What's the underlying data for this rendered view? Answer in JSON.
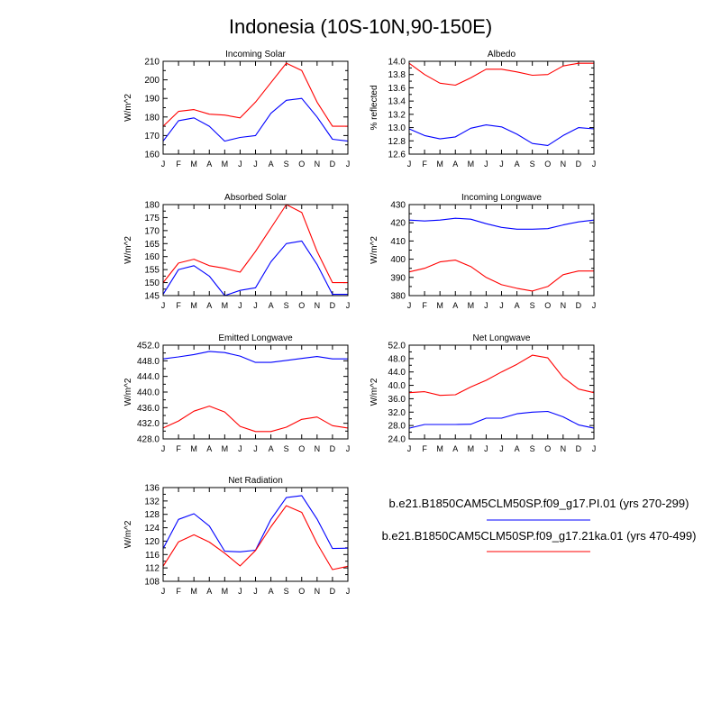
{
  "figure": {
    "title": "Indonesia (10S-10N,90-150E)",
    "months": [
      "J",
      "F",
      "M",
      "A",
      "M",
      "J",
      "J",
      "A",
      "S",
      "O",
      "N",
      "D",
      "J"
    ],
    "series_colors": {
      "pi": "#0000ff",
      "ka21": "#ff0000"
    },
    "legend": [
      {
        "label": "b.e21.B1850CAM5CLM50SP.f09_g17.PI.01 (yrs 270-299)",
        "color": "#0000ff"
      },
      {
        "label": "b.e21.B1850CAM5CLM50SP.f09_g17.21ka.01 (yrs 470-499)",
        "color": "#ff0000"
      }
    ]
  },
  "chart_data": [
    {
      "type": "line",
      "title": "Incoming Solar",
      "ylabel": "W/m^2",
      "x": [
        "J",
        "F",
        "M",
        "A",
        "M",
        "J",
        "J",
        "A",
        "S",
        "O",
        "N",
        "D",
        "J"
      ],
      "ylim": [
        160,
        210
      ],
      "yticks": [
        160,
        170,
        180,
        190,
        200,
        210
      ],
      "ytick_labels": [
        "160",
        "170",
        "180",
        "190",
        "200",
        "210"
      ],
      "series": [
        {
          "name": "b.e21.B1850CAM5CLM50SP.f09_g17.PI.01 (yrs 270-299)",
          "color": "#0000ff",
          "values": [
            167,
            178,
            179.5,
            175,
            167,
            169,
            170,
            182,
            189,
            190,
            180,
            168,
            167
          ]
        },
        {
          "name": "b.e21.B1850CAM5CLM50SP.f09_g17.21ka.01 (yrs 470-499)",
          "color": "#ff0000",
          "values": [
            175,
            183,
            184,
            181.5,
            181,
            179.5,
            188,
            198.5,
            209,
            205,
            188,
            175,
            175
          ]
        }
      ]
    },
    {
      "type": "line",
      "title": "Albedo",
      "ylabel": "% reflected",
      "x": [
        "J",
        "F",
        "M",
        "A",
        "M",
        "J",
        "J",
        "A",
        "S",
        "O",
        "N",
        "D",
        "J"
      ],
      "ylim": [
        12.6,
        14.0
      ],
      "yticks": [
        12.6,
        12.8,
        13.0,
        13.2,
        13.4,
        13.6,
        13.8,
        14.0
      ],
      "ytick_labels": [
        "12.6",
        "12.8",
        "13.0",
        "13.2",
        "13.4",
        "13.6",
        "13.8",
        "14.0"
      ],
      "series": [
        {
          "name": "b.e21.B1850CAM5CLM50SP.f09_g17.PI.01 (yrs 270-299)",
          "color": "#0000ff",
          "values": [
            12.98,
            12.88,
            12.83,
            12.86,
            12.99,
            13.04,
            13.01,
            12.9,
            12.76,
            12.73,
            12.88,
            13.0,
            12.98
          ]
        },
        {
          "name": "b.e21.B1850CAM5CLM50SP.f09_g17.21ka.01 (yrs 470-499)",
          "color": "#ff0000",
          "values": [
            13.97,
            13.8,
            13.67,
            13.64,
            13.75,
            13.88,
            13.88,
            13.84,
            13.79,
            13.8,
            13.93,
            13.97,
            13.97
          ]
        }
      ]
    },
    {
      "type": "line",
      "title": "Absorbed Solar",
      "ylabel": "W/m^2",
      "x": [
        "J",
        "F",
        "M",
        "A",
        "M",
        "J",
        "J",
        "A",
        "S",
        "O",
        "N",
        "D",
        "J"
      ],
      "ylim": [
        145,
        180
      ],
      "yticks": [
        145,
        150,
        155,
        160,
        165,
        170,
        175,
        180
      ],
      "ytick_labels": [
        "145",
        "150",
        "155",
        "160",
        "165",
        "170",
        "175",
        "180"
      ],
      "series": [
        {
          "name": "b.e21.B1850CAM5CLM50SP.f09_g17.PI.01 (yrs 270-299)",
          "color": "#0000ff",
          "values": [
            145.5,
            155,
            156.5,
            152.5,
            145,
            147,
            148,
            158,
            165,
            166,
            157,
            145.5,
            145.5
          ]
        },
        {
          "name": "b.e21.B1850CAM5CLM50SP.f09_g17.21ka.01 (yrs 470-499)",
          "color": "#ff0000",
          "values": [
            150,
            157.5,
            159,
            156.5,
            155.5,
            154,
            162,
            171,
            180,
            177,
            162,
            150,
            150
          ]
        }
      ]
    },
    {
      "type": "line",
      "title": "Incoming Longwave",
      "ylabel": "W/m^2",
      "x": [
        "J",
        "F",
        "M",
        "A",
        "M",
        "J",
        "J",
        "A",
        "S",
        "O",
        "N",
        "D",
        "J"
      ],
      "ylim": [
        380,
        430
      ],
      "yticks": [
        380,
        390,
        400,
        410,
        420,
        430
      ],
      "ytick_labels": [
        "380",
        "390",
        "400",
        "410",
        "420",
        "430"
      ],
      "series": [
        {
          "name": "b.e21.B1850CAM5CLM50SP.f09_g17.PI.01 (yrs 270-299)",
          "color": "#0000ff",
          "values": [
            421.5,
            421,
            421.5,
            422.5,
            422,
            419.5,
            417.5,
            416.5,
            416.5,
            416.8,
            418.8,
            420.5,
            421.5
          ]
        },
        {
          "name": "b.e21.B1850CAM5CLM50SP.f09_g17.21ka.01 (yrs 470-499)",
          "color": "#ff0000",
          "values": [
            393,
            395,
            398.5,
            399.5,
            396,
            390,
            386,
            384,
            382.5,
            385,
            391.5,
            393.5,
            393.5
          ]
        }
      ]
    },
    {
      "type": "line",
      "title": "Emitted Longwave",
      "ylabel": "W/m^2",
      "x": [
        "J",
        "F",
        "M",
        "A",
        "M",
        "J",
        "J",
        "A",
        "S",
        "O",
        "N",
        "D",
        "J"
      ],
      "ylim": [
        428,
        452
      ],
      "yticks": [
        428,
        432,
        436,
        440,
        444,
        448,
        452
      ],
      "ytick_labels": [
        "428.0",
        "432.0",
        "436.0",
        "440.0",
        "444.0",
        "448.0",
        "452.0"
      ],
      "series": [
        {
          "name": "b.e21.B1850CAM5CLM50SP.f09_g17.PI.01 (yrs 270-299)",
          "color": "#0000ff",
          "values": [
            448.5,
            449,
            449.6,
            450.4,
            450.1,
            449.2,
            447.6,
            447.6,
            448.1,
            448.6,
            449.1,
            448.5,
            448.5
          ]
        },
        {
          "name": "b.e21.B1850CAM5CLM50SP.f09_g17.21ka.01 (yrs 470-499)",
          "color": "#ff0000",
          "values": [
            430.8,
            432.6,
            435.1,
            436.4,
            434.9,
            431.2,
            429.9,
            429.9,
            431,
            433,
            433.6,
            431.4,
            430.8
          ]
        }
      ]
    },
    {
      "type": "line",
      "title": "Net Longwave",
      "ylabel": "W/m^2",
      "x": [
        "J",
        "F",
        "M",
        "A",
        "M",
        "J",
        "J",
        "A",
        "S",
        "O",
        "N",
        "D",
        "J"
      ],
      "ylim": [
        24,
        52
      ],
      "yticks": [
        24,
        28,
        32,
        36,
        40,
        44,
        48,
        52
      ],
      "ytick_labels": [
        "24.0",
        "28.0",
        "32.0",
        "36.0",
        "40.0",
        "44.0",
        "48.0",
        "52.0"
      ],
      "series": [
        {
          "name": "b.e21.B1850CAM5CLM50SP.f09_g17.PI.01 (yrs 270-299)",
          "color": "#0000ff",
          "values": [
            27.2,
            28.3,
            28.3,
            28.3,
            28.4,
            30.2,
            30.2,
            31.5,
            32.0,
            32.2,
            30.6,
            28.2,
            27.2
          ]
        },
        {
          "name": "b.e21.B1850CAM5CLM50SP.f09_g17.21ka.01 (yrs 470-499)",
          "color": "#ff0000",
          "values": [
            37.8,
            38.1,
            37.0,
            37.2,
            39.5,
            41.5,
            44.0,
            46.3,
            49.0,
            48.2,
            42.4,
            38.9,
            37.8
          ]
        }
      ]
    },
    {
      "type": "line",
      "title": "Net Radiation",
      "ylabel": "W/m^2",
      "x": [
        "J",
        "F",
        "M",
        "A",
        "M",
        "J",
        "J",
        "A",
        "S",
        "O",
        "N",
        "D",
        "J"
      ],
      "ylim": [
        108,
        136
      ],
      "yticks": [
        108,
        112,
        116,
        120,
        124,
        128,
        132,
        136
      ],
      "ytick_labels": [
        "108",
        "112",
        "116",
        "120",
        "124",
        "128",
        "132",
        "136"
      ],
      "series": [
        {
          "name": "b.e21.B1850CAM5CLM50SP.f09_g17.PI.01 (yrs 270-299)",
          "color": "#0000ff",
          "values": [
            117.8,
            126.5,
            128.2,
            124.5,
            117,
            116.8,
            117.3,
            126.5,
            133,
            133.6,
            126.6,
            117.8,
            117.9
          ]
        },
        {
          "name": "b.e21.B1850CAM5CLM50SP.f09_g17.21ka.01 (yrs 470-499)",
          "color": "#ff0000",
          "values": [
            112.5,
            119.8,
            121.9,
            119.7,
            116.4,
            112.6,
            117.2,
            124.3,
            130.6,
            128.6,
            119.3,
            111.5,
            112.5
          ]
        }
      ]
    }
  ]
}
